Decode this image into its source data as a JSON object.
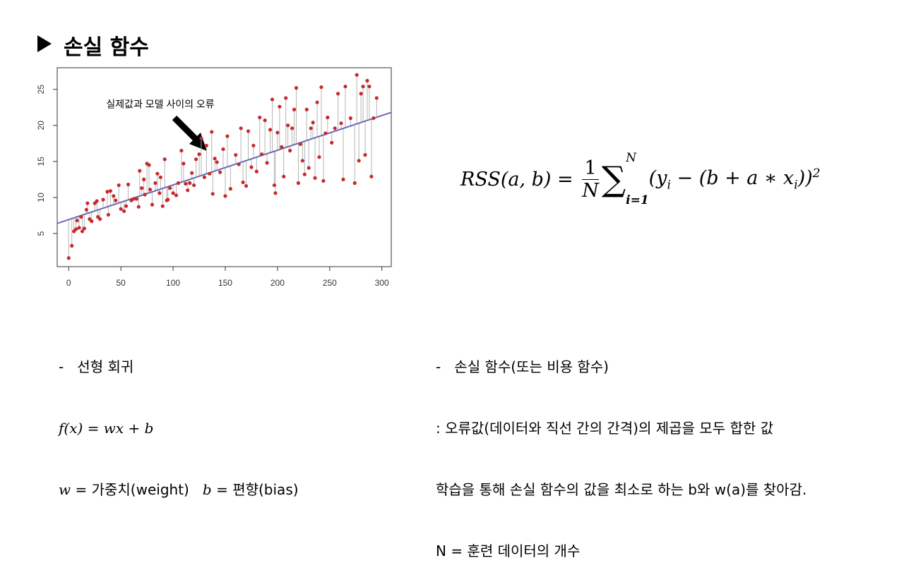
{
  "slide": {
    "title": "손실 함수",
    "left": {
      "marker": "-",
      "heading": "선형 회귀",
      "equation": "f(x) = wx + b",
      "w_sym": "w",
      "w_text": " = 가중치(weight)",
      "b_sym": "b",
      "b_text": " = 편향(bias)"
    },
    "formula": {
      "lhs": "RSS(a, b) = ",
      "num": "1",
      "den": "N",
      "sigma": "∑",
      "upper": "N",
      "lower": "i=1",
      "open": "(y",
      "sub1": "i",
      "mid": " − (b + a ∗ x",
      "sub2": "i",
      "close": "))",
      "power": "2"
    },
    "right": {
      "marker": "-",
      "heading": "손실 함수(또는 비용 함수)",
      "lines": [
        ": 오류값(데이터와 직선 간의 간격)의 제곱을 모두 합한 값",
        "학습을 통해 손실 함수의 값을 최소로 하는 b와 w(a)를 찾아감.",
        "N = 훈련 데이터의 개수"
      ]
    }
  },
  "chart_data": {
    "type": "scatter",
    "annotation": "실제값과 모델 사이의 오류",
    "color": "#c62a2e",
    "x": [
      0,
      3,
      5,
      7,
      8,
      10,
      12,
      13,
      15,
      17,
      18,
      20,
      22,
      25,
      27,
      28,
      30,
      33,
      37,
      38,
      40,
      43,
      45,
      48,
      50,
      53,
      55,
      57,
      60,
      62,
      65,
      67,
      68,
      70,
      72,
      73,
      75,
      77,
      78,
      80,
      83,
      85,
      87,
      88,
      90,
      92,
      94,
      95,
      97,
      100,
      103,
      105,
      108,
      110,
      112,
      114,
      116,
      118,
      120,
      122,
      125,
      127,
      130,
      132,
      135,
      137,
      138,
      140,
      142,
      145,
      148,
      150,
      152,
      155,
      160,
      163,
      165,
      167,
      170,
      172,
      175,
      177,
      180,
      183,
      185,
      188,
      190,
      193,
      195,
      197,
      198,
      200,
      202,
      204,
      206,
      208,
      210,
      212,
      214,
      216,
      218,
      220,
      222,
      224,
      226,
      228,
      230,
      232,
      234,
      236,
      238,
      240,
      242,
      244,
      246,
      248,
      252,
      255,
      258,
      261,
      263,
      265,
      270,
      274,
      276,
      278,
      280,
      282,
      284,
      286,
      288,
      290,
      292,
      295
    ],
    "y": [
      1.6,
      3.3,
      5.3,
      5.6,
      6.8,
      5.8,
      7.3,
      5.3,
      5.7,
      8.3,
      9.2,
      7.0,
      6.7,
      9.2,
      9.5,
      7.3,
      7.0,
      9.7,
      10.8,
      7.6,
      10.9,
      10.2,
      9.6,
      11.7,
      8.4,
      8.1,
      8.8,
      11.8,
      9.6,
      9.8,
      9.8,
      8.7,
      13.7,
      11.3,
      12.5,
      10.4,
      14.7,
      14.5,
      11.1,
      9.0,
      12.0,
      13.3,
      10.6,
      12.8,
      8.8,
      15.3,
      9.6,
      9.7,
      11.3,
      10.6,
      10.3,
      12.0,
      16.5,
      14.7,
      11.9,
      11.0,
      12.0,
      13.4,
      11.7,
      15.3,
      16.0,
      18.2,
      12.8,
      17.2,
      13.3,
      19.1,
      10.5,
      15.4,
      14.9,
      13.5,
      16.7,
      10.2,
      18.5,
      11.2,
      15.9,
      14.6,
      19.6,
      12.1,
      11.6,
      19.2,
      14.2,
      17.2,
      13.6,
      21.1,
      16.0,
      20.7,
      14.8,
      19.4,
      23.6,
      11.7,
      10.6,
      19.0,
      22.6,
      17.0,
      12.9,
      23.8,
      20.0,
      16.5,
      19.6,
      22.2,
      25.2,
      12.0,
      17.4,
      15.1,
      13.2,
      22.2,
      14.1,
      19.6,
      20.4,
      12.7,
      23.2,
      15.6,
      25.3,
      12.3,
      18.9,
      21.1,
      17.6,
      19.6,
      24.4,
      20.3,
      12.5,
      25.4,
      21.0,
      12.0,
      27.0,
      15.1,
      24.4,
      25.4,
      15.9,
      26.2,
      25.4,
      12.9,
      21.0,
      23.8
    ],
    "fit_line": {
      "x": [
        -11,
        309
      ],
      "y": [
        6.4,
        21.8
      ],
      "color": "#6b6bb4"
    },
    "xlim": [
      -11,
      309
    ],
    "ylim": [
      0.4,
      28
    ],
    "xticks": [
      0,
      50,
      100,
      150,
      200,
      250,
      300
    ],
    "yticks": [
      5,
      10,
      15,
      20,
      25
    ]
  }
}
